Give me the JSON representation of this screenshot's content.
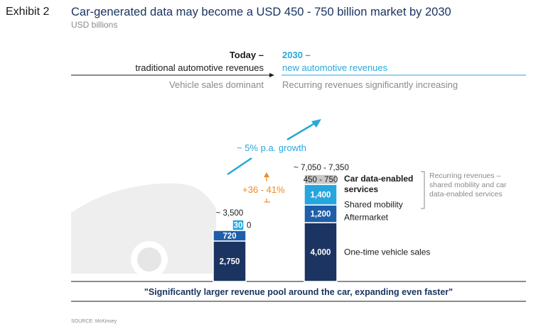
{
  "header": {
    "exhibit": "Exhibit 2",
    "title": "Car-generated data may become a USD 450 - 750 billion market by 2030",
    "subtitle": "USD billions"
  },
  "timeline": {
    "today_label": "Today –",
    "today_desc": "traditional automotive revenues",
    "today_note": "Vehicle sales dominant",
    "future_label": "2030 –",
    "future_desc": "new automotive revenues",
    "future_note": "Recurring revenues significantly increasing"
  },
  "growth_label": "~ 5% p.a. growth",
  "increase_label": "+36 - 41%",
  "recurring_note": [
    "Recurring revenues –",
    "shared mobility and car",
    "data-enabled services"
  ],
  "footer_quote": "\"Significantly larger revenue pool around the car, expanding even faster\"",
  "source": "SOURCE: McKinsey",
  "colors": {
    "dark_navy": "#1b3461",
    "mid_blue": "#1f5ea8",
    "light_blue": "#27a6de",
    "gray_segment": "#c8c8c8",
    "orange": "#f08a24",
    "cyan_text": "#29a7d9"
  },
  "chart_data": {
    "type": "bar",
    "stacked": true,
    "categories": [
      "Today",
      "2030"
    ],
    "totals": [
      "~ 3,500",
      "~ 7,050 - 7,350"
    ],
    "series": [
      {
        "name": "One-time vehicle sales",
        "values": [
          2750,
          4000
        ],
        "labels": [
          "2,750",
          "4,000"
        ],
        "color": "#1b3461"
      },
      {
        "name": "Aftermarket",
        "values": [
          720,
          1200
        ],
        "labels": [
          "720",
          "1,200"
        ],
        "color": "#1f5ea8"
      },
      {
        "name": "Shared mobility",
        "values": [
          30,
          1400
        ],
        "labels": [
          "30",
          "1,400"
        ],
        "color": "#27a6de"
      },
      {
        "name": "Car data-enabled services",
        "values": [
          0,
          600
        ],
        "labels": [
          "0",
          "450 - 750"
        ],
        "color": "#c8c8c8"
      }
    ],
    "legend_labels": [
      "One-time vehicle sales",
      "Aftermarket",
      "Shared mobility",
      "Car data-enabled services"
    ]
  }
}
